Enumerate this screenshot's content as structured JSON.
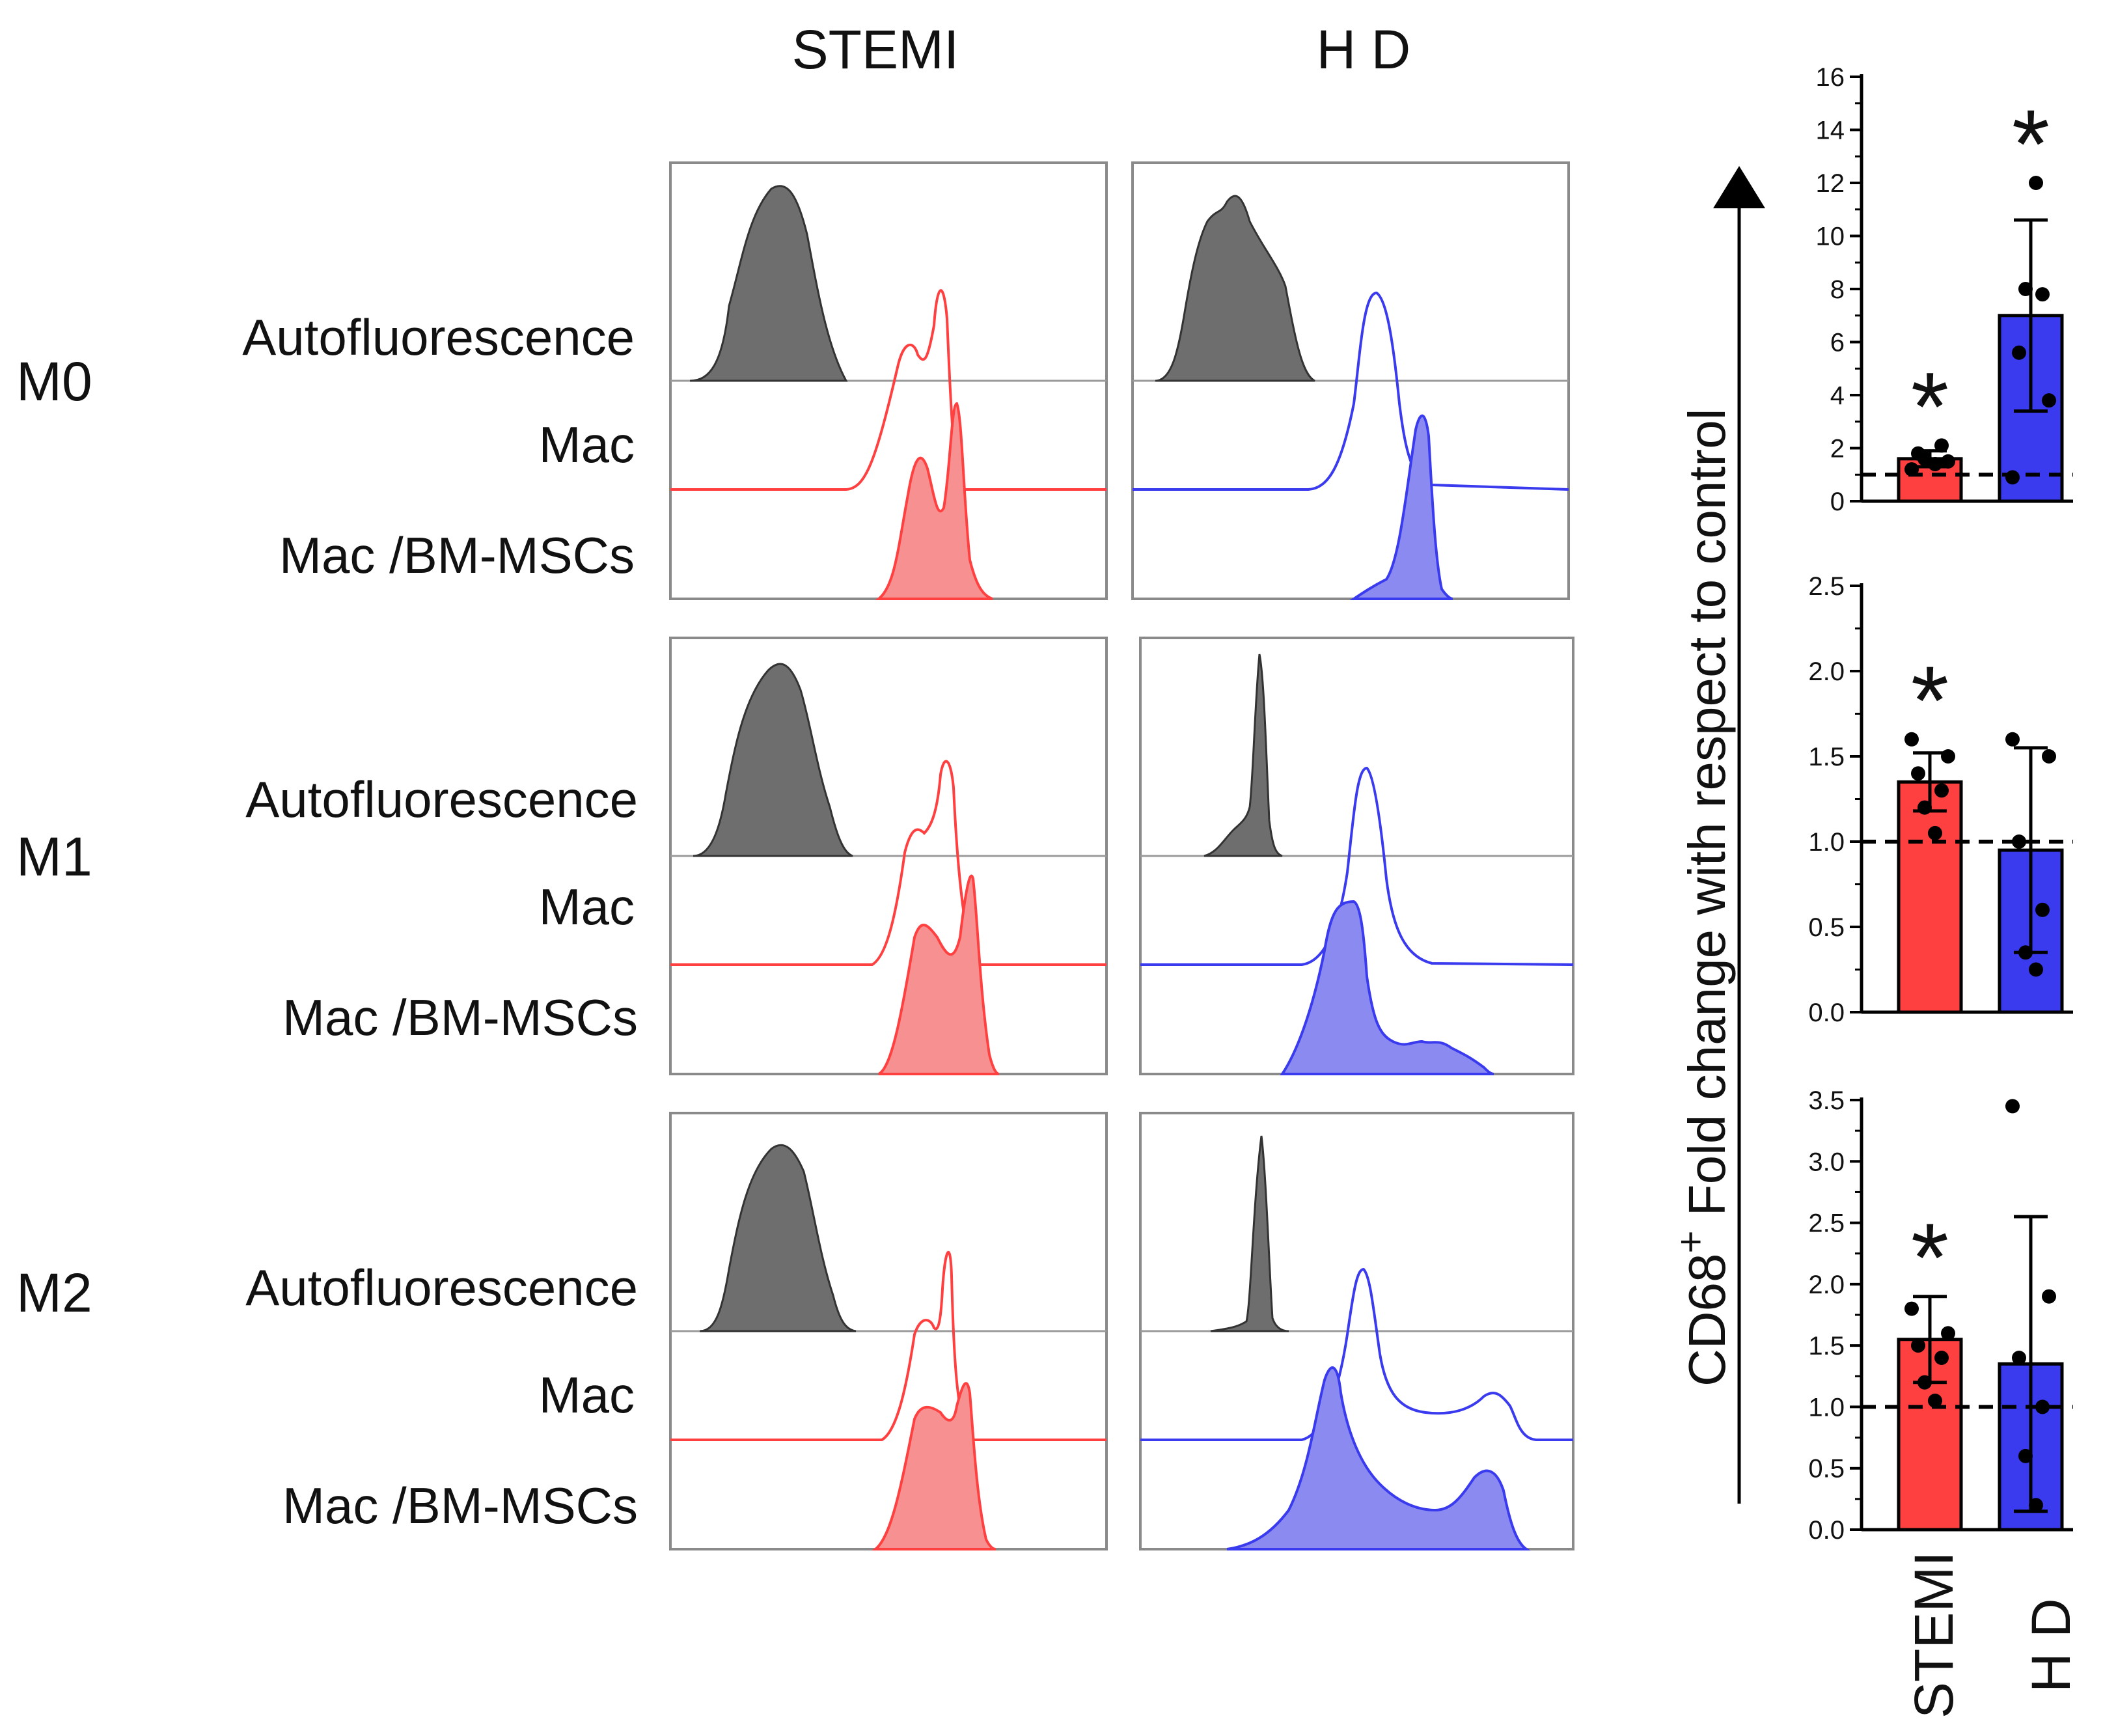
{
  "columns": [
    "STEMI",
    "H D"
  ],
  "rows": [
    "M0",
    "M1",
    "M2"
  ],
  "trace_labels": [
    "Autofluorescence",
    "Mac",
    "Mac /BM-MSCs"
  ],
  "y_axis_label": "CD68",
  "y_axis_label_sup": "+",
  "y_axis_label_rest": " Fold change with respect to control",
  "colors": {
    "stemi": "#ff4040",
    "stemi_fill": "#f79090",
    "hd": "#3a3aef",
    "hd_fill": "#8a8af0",
    "auto": "#6e6e6e",
    "frame": "#8a8a8a"
  },
  "chart_data": [
    {
      "type": "bar",
      "row": "M0",
      "categories": [
        "STEMI",
        "H D"
      ],
      "values": [
        1.6,
        7.0
      ],
      "error": [
        0.3,
        3.6
      ],
      "points": [
        [
          1.2,
          1.5,
          1.8,
          2.1,
          1.6,
          1.4
        ],
        [
          0.9,
          3.8,
          5.6,
          7.8,
          8.0,
          12.0
        ]
      ],
      "significant": [
        true,
        true
      ],
      "significance_mark": "*",
      "ylim": [
        0,
        16
      ],
      "ticks": [
        0,
        2,
        4,
        6,
        8,
        10,
        12,
        14,
        16
      ],
      "tick_labels": [
        "0",
        "2",
        "4",
        "6",
        "8",
        "10",
        "12",
        "14",
        "16"
      ],
      "reference_line": 1.0
    },
    {
      "type": "bar",
      "row": "M1",
      "categories": [
        "STEMI",
        "H D"
      ],
      "values": [
        1.35,
        0.95
      ],
      "error": [
        0.17,
        0.6
      ],
      "points": [
        [
          1.6,
          1.5,
          1.4,
          1.3,
          1.2,
          1.05
        ],
        [
          1.6,
          1.5,
          1.0,
          0.6,
          0.35,
          0.25
        ]
      ],
      "significant": [
        true,
        false
      ],
      "significance_mark": "*",
      "ylim": [
        0,
        2.5
      ],
      "ticks": [
        0.0,
        0.5,
        1.0,
        1.5,
        2.0,
        2.5
      ],
      "tick_labels": [
        "0.0",
        "0.5",
        "1.0",
        "1.5",
        "2.0",
        "2.5"
      ],
      "reference_line": 1.0
    },
    {
      "type": "bar",
      "row": "M2",
      "categories": [
        "STEMI",
        "H D"
      ],
      "values": [
        1.55,
        1.35
      ],
      "error": [
        0.35,
        1.2
      ],
      "points": [
        [
          1.8,
          1.6,
          1.5,
          1.4,
          1.2,
          1.05
        ],
        [
          3.45,
          1.9,
          1.4,
          1.0,
          0.6,
          0.2
        ]
      ],
      "significant": [
        true,
        false
      ],
      "significance_mark": "*",
      "ylim": [
        0,
        3.5
      ],
      "ticks": [
        0.0,
        0.5,
        1.0,
        1.5,
        2.0,
        2.5,
        3.0,
        3.5
      ],
      "tick_labels": [
        "0.0",
        "0.5",
        "1.0",
        "1.5",
        "2.0",
        "2.5",
        "3.0",
        "3.5"
      ],
      "reference_line": 1.0
    }
  ]
}
